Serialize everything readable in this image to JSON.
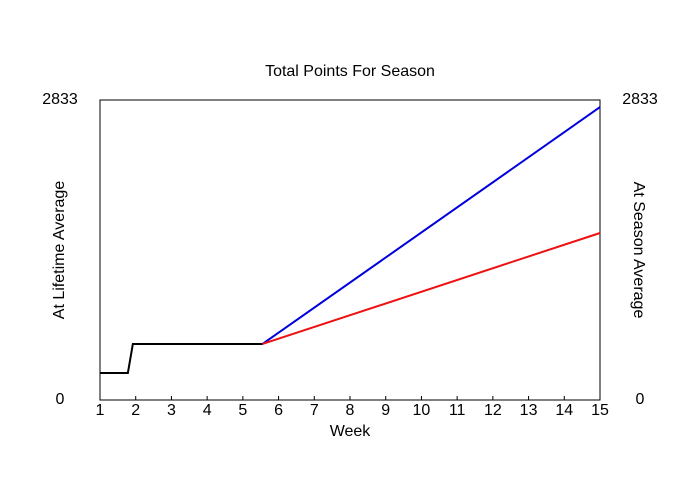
{
  "chart_data": {
    "type": "line",
    "title": "Total Points For Season",
    "x_label": "Week",
    "y_label": "At Lifetime Average",
    "y_label_color": "#0000ff",
    "y2_label": "At Season Average",
    "y2_label_color": "#ff0000",
    "xlim": [
      1,
      15
    ],
    "xticks": [
      1,
      2,
      3,
      4,
      5,
      6,
      7,
      8,
      9,
      10,
      11,
      12,
      13,
      14,
      15
    ],
    "ylim": [
      0,
      2833
    ],
    "yticks": [
      0,
      2833
    ],
    "y2lim": [
      0,
      2833
    ],
    "y2ticks": [
      0,
      2833
    ],
    "series": [
      {
        "color": "#000000",
        "x": [
          1,
          1.78,
          1.92,
          5.55
        ],
        "values": [
          255,
          255,
          529,
          529
        ]
      },
      {
        "color": "#0000dd",
        "x": [
          5.55,
          15
        ],
        "values": [
          529,
          2766
        ]
      },
      {
        "color": "#ee1111",
        "x": [
          5.55,
          15
        ],
        "values": [
          529,
          1577
        ],
        "axis": "y2"
      }
    ]
  }
}
